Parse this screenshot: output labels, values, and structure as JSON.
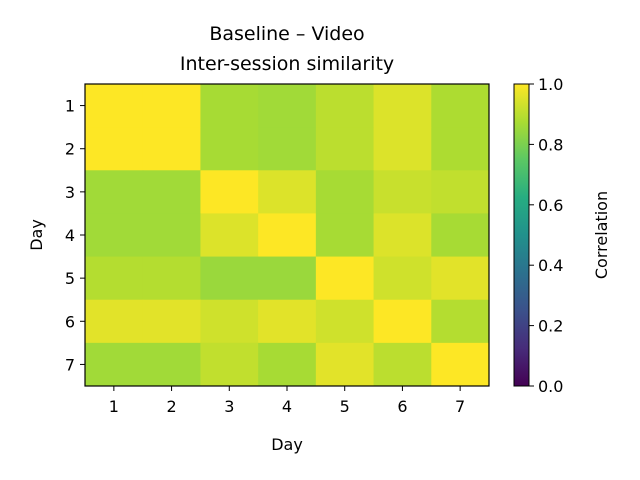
{
  "chart_data": {
    "type": "heatmap",
    "title": "Baseline – Video",
    "subtitle": "Inter-session similarity",
    "xlabel": "Day",
    "ylabel": "Day",
    "x_categories": [
      "1",
      "2",
      "3",
      "4",
      "5",
      "6",
      "7"
    ],
    "y_categories": [
      "1",
      "2",
      "3",
      "4",
      "5",
      "6",
      "7"
    ],
    "values": [
      [
        1.0,
        1.0,
        0.87,
        0.86,
        0.9,
        0.95,
        0.88
      ],
      [
        1.0,
        1.0,
        0.87,
        0.86,
        0.9,
        0.95,
        0.88
      ],
      [
        0.86,
        0.86,
        1.0,
        0.95,
        0.87,
        0.92,
        0.91
      ],
      [
        0.86,
        0.86,
        0.95,
        1.0,
        0.87,
        0.95,
        0.87
      ],
      [
        0.89,
        0.89,
        0.85,
        0.85,
        1.0,
        0.93,
        0.96
      ],
      [
        0.96,
        0.96,
        0.93,
        0.96,
        0.93,
        1.0,
        0.89
      ],
      [
        0.86,
        0.86,
        0.91,
        0.87,
        0.96,
        0.9,
        1.0
      ]
    ],
    "colorbar": {
      "label": "Correlation",
      "range": [
        0.0,
        1.0
      ],
      "ticks": [
        "0.0",
        "0.2",
        "0.4",
        "0.6",
        "0.8",
        "1.0"
      ],
      "colormap": "viridis"
    },
    "grid": false
  }
}
